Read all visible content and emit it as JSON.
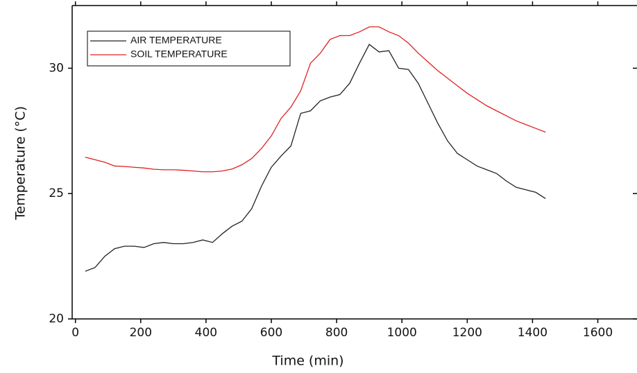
{
  "chart_data": {
    "type": "line",
    "xlabel": "Time (min)",
    "ylabel": "Temperature (°C)",
    "x": [
      30,
      60,
      90,
      120,
      150,
      180,
      210,
      240,
      270,
      300,
      330,
      360,
      390,
      420,
      450,
      480,
      510,
      540,
      570,
      600,
      630,
      660,
      690,
      720,
      750,
      780,
      810,
      840,
      870,
      900,
      930,
      960,
      990,
      1020,
      1050,
      1080,
      1110,
      1140,
      1170,
      1200,
      1230,
      1260,
      1290,
      1320,
      1350,
      1380,
      1410,
      1440
    ],
    "series": [
      {
        "name": "AIR TEMPERATURE",
        "color": "#222222",
        "values": [
          21.9,
          22.05,
          22.5,
          22.8,
          22.9,
          22.9,
          22.85,
          23.0,
          23.05,
          23.0,
          23.0,
          23.05,
          23.15,
          23.05,
          23.4,
          23.7,
          23.9,
          24.4,
          25.3,
          26.05,
          26.5,
          26.9,
          28.2,
          28.3,
          28.7,
          28.85,
          28.95,
          29.4,
          30.2,
          30.95,
          30.65,
          30.7,
          30.0,
          29.95,
          29.4,
          28.6,
          27.8,
          27.1,
          26.6,
          26.35,
          26.1,
          25.95,
          25.8,
          25.5,
          25.25,
          25.15,
          25.05,
          24.8
        ]
      },
      {
        "name": "SOIL TEMPERATURE",
        "color": "#e02020",
        "values": [
          26.45,
          26.35,
          26.25,
          26.1,
          26.08,
          26.05,
          26.02,
          25.97,
          25.95,
          25.95,
          25.93,
          25.9,
          25.87,
          25.87,
          25.9,
          25.98,
          26.15,
          26.4,
          26.8,
          27.3,
          28.0,
          28.45,
          29.1,
          30.2,
          30.6,
          31.15,
          31.3,
          31.3,
          31.45,
          31.65,
          31.65,
          31.45,
          31.3,
          31.0,
          30.6,
          30.25,
          29.9,
          29.6,
          29.3,
          29.0,
          28.75,
          28.5,
          28.3,
          28.1,
          27.9,
          27.75,
          27.6,
          27.45
        ]
      }
    ],
    "xlim": [
      -10,
      1720
    ],
    "ylim": [
      20,
      32.5
    ],
    "xticks": [
      0,
      200,
      400,
      600,
      800,
      1000,
      1200,
      1400,
      1600
    ],
    "yticks": [
      20,
      25,
      30
    ],
    "legend": "upper-left"
  }
}
